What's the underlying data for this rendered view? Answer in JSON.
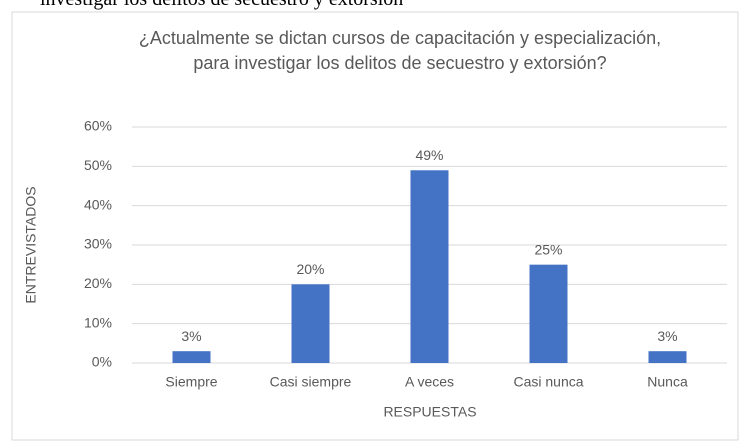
{
  "caption": "investigar los delitos de secuestro y extorsión",
  "chart_data": {
    "type": "bar",
    "title": "¿Actualmente se dictan cursos de capacitación y especialización, para investigar los delitos de secuestro y extorsión?",
    "x_label": "RESPUESTAS",
    "y_label": "ENTREVISTADOS",
    "categories": [
      "Siempre",
      "Casi siempre",
      "A veces",
      "Casi nunca",
      "Nunca"
    ],
    "values": [
      3,
      20,
      49,
      25,
      3
    ],
    "value_labels": [
      "3%",
      "20%",
      "49%",
      "25%",
      "3%"
    ],
    "color": "#4472c4",
    "ylim": [
      0,
      60
    ],
    "yticks": [
      {
        "value": 0,
        "label": "0%"
      },
      {
        "value": 10,
        "label": "10%"
      },
      {
        "value": 20,
        "label": "20%"
      },
      {
        "value": 30,
        "label": "30%"
      },
      {
        "value": 40,
        "label": "40%"
      },
      {
        "value": 50,
        "label": "50%"
      },
      {
        "value": 60,
        "label": "60%"
      }
    ],
    "grid": true
  }
}
